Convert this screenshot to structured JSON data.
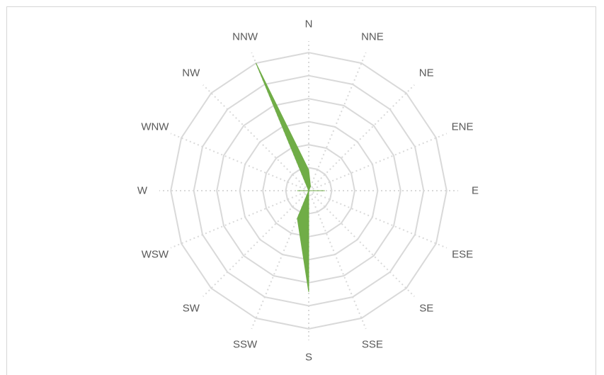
{
  "chart_data": {
    "type": "radar",
    "subtype": "filled",
    "directions": [
      "N",
      "NNE",
      "NE",
      "ENE",
      "E",
      "ESE",
      "SE",
      "SSE",
      "S",
      "SSW",
      "SW",
      "WSW",
      "W",
      "WNW",
      "NW",
      "NNW"
    ],
    "series": [
      {
        "values": [
          0.9,
          0.2,
          0,
          0,
          0.7,
          0,
          0,
          0,
          4.4,
          1.3,
          0,
          0,
          0.5,
          0,
          0,
          6.0
        ]
      }
    ],
    "rlim": [
      0,
      6.5
    ],
    "ring_step": 1,
    "grid": true,
    "legend": "none",
    "colors": {
      "series": "#70ad47",
      "grid": "#d9d9d9",
      "spoke": "#d9d9d9",
      "label": "#595959",
      "border": "#d6d6d6"
    }
  }
}
